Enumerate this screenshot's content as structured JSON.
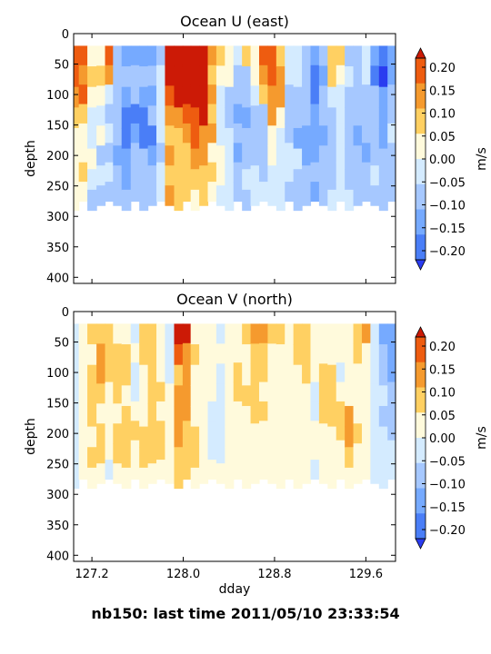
{
  "footer": "nb150: last time 2011/05/10 23:33:54",
  "chart_data": [
    {
      "type": "heatmap",
      "title": "Ocean U (east)",
      "ylabel": "depth",
      "xlabel": "",
      "xlim": [
        127.04,
        129.86
      ],
      "ylim": [
        410,
        0
      ],
      "y_inverted": true,
      "yticks": [
        0,
        50,
        100,
        150,
        200,
        250,
        300,
        350,
        400
      ],
      "xticks": [
        127.2,
        128.0,
        128.8,
        129.6
      ],
      "xtick_labels_shown": false,
      "data_depth_range": [
        20,
        290
      ],
      "colorbar": {
        "label": "m/s",
        "ticks": [
          "0.20",
          "0.15",
          "0.10",
          "0.05",
          "0.00",
          "−0.05",
          "−0.10",
          "−0.15",
          "−0.20"
        ],
        "range": [
          -0.2,
          0.2
        ],
        "extend": "both",
        "colors": [
          "#2a3cf0",
          "#4a7ef7",
          "#76aaff",
          "#a6c8ff",
          "#d4ebff",
          "#fffadc",
          "#ffd062",
          "#f59a2e",
          "#ee5c10",
          "#cc1a06"
        ]
      },
      "columns": [
        {
          "day": 127.05,
          "v": [
            0.16,
            0.16,
            0.11,
            0.06,
            0.03,
            0.02,
            0.04,
            0.01
          ]
        },
        {
          "day": 127.12,
          "v": [
            0.16,
            0.13,
            0.16,
            0.08,
            0.01,
            0.04,
            0.06,
            0.01
          ]
        },
        {
          "day": 127.2,
          "v": [
            0.01,
            0.06,
            0.04,
            -0.02,
            -0.05,
            0.01,
            -0.02,
            -0.06
          ]
        },
        {
          "day": 127.28,
          "v": [
            0.02,
            0.09,
            0.02,
            -0.05,
            0.0,
            -0.06,
            -0.05,
            -0.06
          ]
        },
        {
          "day": 127.35,
          "v": [
            0.16,
            0.1,
            -0.02,
            -0.07,
            -0.04,
            -0.07,
            -0.02,
            -0.06
          ]
        },
        {
          "day": 127.42,
          "v": [
            -0.07,
            -0.09,
            -0.08,
            -0.1,
            -0.1,
            -0.12,
            -0.1,
            -0.09
          ]
        },
        {
          "day": 127.5,
          "v": [
            -0.14,
            -0.1,
            -0.13,
            -0.16,
            -0.19,
            -0.11,
            -0.11,
            -0.09
          ]
        },
        {
          "day": 127.58,
          "v": [
            -0.13,
            -0.08,
            -0.1,
            -0.17,
            -0.14,
            -0.1,
            -0.1,
            -0.06
          ]
        },
        {
          "day": 127.65,
          "v": [
            -0.14,
            -0.07,
            -0.14,
            -0.17,
            -0.16,
            -0.1,
            -0.06,
            -0.07
          ]
        },
        {
          "day": 127.73,
          "v": [
            -0.15,
            -0.1,
            -0.13,
            -0.1,
            -0.17,
            -0.11,
            -0.07,
            -0.1
          ]
        },
        {
          "day": 127.8,
          "v": [
            -0.09,
            -0.03,
            -0.02,
            -0.03,
            -0.05,
            -0.1,
            -0.03,
            -0.04
          ]
        },
        {
          "day": 127.88,
          "v": [
            0.22,
            0.22,
            0.16,
            0.12,
            0.08,
            0.1,
            0.05,
            0.1
          ]
        },
        {
          "day": 127.96,
          "v": [
            0.21,
            0.22,
            0.22,
            0.12,
            0.07,
            0.06,
            0.07,
            0.08
          ]
        },
        {
          "day": 128.03,
          "v": [
            0.22,
            0.22,
            0.21,
            0.16,
            0.11,
            0.06,
            0.07,
            0.06
          ]
        },
        {
          "day": 128.1,
          "v": [
            0.22,
            0.22,
            0.21,
            0.17,
            0.18,
            0.13,
            0.06,
            0.04
          ]
        },
        {
          "day": 128.18,
          "v": [
            0.22,
            0.22,
            0.21,
            0.21,
            0.13,
            0.11,
            0.08,
            0.05
          ]
        },
        {
          "day": 128.25,
          "v": [
            0.11,
            0.09,
            0.11,
            0.06,
            0.11,
            0.03,
            0.05,
            0.04
          ]
        },
        {
          "day": 128.33,
          "v": [
            0.05,
            0.03,
            -0.01,
            -0.02,
            -0.02,
            0.03,
            0.02,
            -0.03
          ]
        },
        {
          "day": 128.4,
          "v": [
            0.03,
            0.02,
            -0.08,
            -0.09,
            -0.04,
            -0.03,
            -0.05,
            -0.05
          ]
        },
        {
          "day": 128.48,
          "v": [
            -0.02,
            -0.08,
            -0.1,
            -0.14,
            -0.1,
            -0.12,
            -0.06,
            -0.06
          ]
        },
        {
          "day": 128.55,
          "v": [
            0.07,
            -0.09,
            -0.09,
            -0.11,
            -0.08,
            -0.08,
            -0.05,
            -0.07
          ]
        },
        {
          "day": 128.63,
          "v": [
            0.01,
            0.03,
            -0.02,
            -0.08,
            -0.09,
            -0.07,
            -0.04,
            -0.05
          ]
        },
        {
          "day": 128.7,
          "v": [
            0.16,
            0.11,
            0.07,
            -0.06,
            -0.07,
            -0.1,
            -0.06,
            -0.04
          ]
        },
        {
          "day": 128.78,
          "v": [
            0.16,
            0.19,
            0.15,
            0.1,
            0.03,
            0.02,
            -0.02,
            -0.02
          ]
        },
        {
          "day": 128.85,
          "v": [
            0.07,
            0.14,
            0.11,
            0.04,
            -0.02,
            -0.05,
            -0.01,
            -0.01
          ]
        },
        {
          "day": 128.93,
          "v": [
            -0.03,
            -0.02,
            -0.1,
            -0.07,
            -0.07,
            -0.04,
            -0.05,
            -0.06
          ]
        },
        {
          "day": 129.0,
          "v": [
            -0.04,
            -0.04,
            -0.06,
            -0.09,
            -0.11,
            -0.05,
            -0.06,
            -0.06
          ]
        },
        {
          "day": 129.08,
          "v": [
            -0.07,
            -0.06,
            -0.06,
            -0.1,
            -0.12,
            -0.14,
            -0.09,
            -0.08
          ]
        },
        {
          "day": 129.15,
          "v": [
            -0.13,
            -0.19,
            -0.17,
            -0.13,
            -0.11,
            -0.14,
            -0.1,
            -0.11
          ]
        },
        {
          "day": 129.23,
          "v": [
            -0.08,
            -0.11,
            -0.1,
            -0.09,
            -0.12,
            -0.09,
            -0.09,
            -0.08
          ]
        },
        {
          "day": 129.3,
          "v": [
            0.06,
            0.07,
            -0.02,
            -0.06,
            -0.06,
            -0.06,
            -0.06,
            -0.03
          ]
        },
        {
          "day": 129.38,
          "v": [
            0.06,
            0.04,
            -0.02,
            -0.05,
            -0.02,
            -0.04,
            -0.05,
            -0.02
          ]
        },
        {
          "day": 129.45,
          "v": [
            -0.08,
            -0.05,
            -0.07,
            -0.07,
            -0.06,
            -0.07,
            -0.06,
            -0.05
          ]
        },
        {
          "day": 129.53,
          "v": [
            -0.07,
            -0.08,
            -0.1,
            -0.09,
            -0.13,
            -0.1,
            -0.08,
            -0.06
          ]
        },
        {
          "day": 129.6,
          "v": [
            -0.05,
            -0.04,
            -0.07,
            -0.07,
            -0.09,
            -0.12,
            -0.07,
            -0.07
          ]
        },
        {
          "day": 129.68,
          "v": [
            -0.12,
            -0.17,
            -0.09,
            -0.09,
            -0.08,
            -0.06,
            -0.04,
            -0.06
          ]
        },
        {
          "day": 129.75,
          "v": [
            -0.17,
            -0.21,
            -0.11,
            -0.14,
            -0.13,
            -0.1,
            -0.07,
            -0.08
          ]
        },
        {
          "day": 129.83,
          "v": [
            -0.11,
            -0.11,
            -0.1,
            -0.08,
            -0.05,
            -0.07,
            -0.08,
            -0.06
          ]
        }
      ]
    },
    {
      "type": "heatmap",
      "title": "Ocean V (north)",
      "ylabel": "depth",
      "xlabel": "dday",
      "xlim": [
        127.04,
        129.86
      ],
      "ylim": [
        410,
        0
      ],
      "y_inverted": true,
      "yticks": [
        0,
        50,
        100,
        150,
        200,
        250,
        300,
        350,
        400
      ],
      "xticks": [
        127.2,
        128.0,
        128.8,
        129.6
      ],
      "xtick_labels": [
        "127.2",
        "128.0",
        "128.8",
        "129.6"
      ],
      "data_depth_range": [
        20,
        290
      ],
      "colorbar": {
        "label": "m/s",
        "ticks": [
          "0.20",
          "0.15",
          "0.10",
          "0.05",
          "0.00",
          "−0.05",
          "−0.10",
          "−0.15",
          "−0.20"
        ],
        "range": [
          -0.2,
          0.2
        ],
        "extend": "both",
        "colors": [
          "#2a3cf0",
          "#4a7ef7",
          "#76aaff",
          "#a6c8ff",
          "#d4ebff",
          "#fffadc",
          "#ffd062",
          "#f59a2e",
          "#ee5c10",
          "#cc1a06"
        ]
      },
      "columns": [
        {
          "day": 127.05,
          "v": [
            -0.05,
            -0.03,
            -0.03,
            -0.02,
            -0.02,
            -0.02,
            -0.03,
            -0.02
          ]
        },
        {
          "day": 127.12,
          "v": [
            0.03,
            0.02,
            0.0,
            0.02,
            0.03,
            0.04,
            0.02,
            0.02
          ]
        },
        {
          "day": 127.2,
          "v": [
            0.06,
            0.04,
            0.05,
            0.06,
            0.07,
            0.04,
            0.06,
            0.03
          ]
        },
        {
          "day": 127.28,
          "v": [
            0.05,
            0.1,
            0.1,
            0.05,
            0.04,
            0.06,
            0.07,
            0.02
          ]
        },
        {
          "day": 127.35,
          "v": [
            0.08,
            0.07,
            0.05,
            0.04,
            0.0,
            0.03,
            0.03,
            -0.01
          ]
        },
        {
          "day": 127.42,
          "v": [
            0.02,
            0.06,
            0.09,
            0.06,
            0.03,
            0.07,
            0.06,
            0.02
          ]
        },
        {
          "day": 127.5,
          "v": [
            0.03,
            0.05,
            0.05,
            0.02,
            0.07,
            0.06,
            0.06,
            0.02
          ]
        },
        {
          "day": 127.58,
          "v": [
            -0.02,
            0.02,
            -0.03,
            -0.03,
            0.04,
            0.05,
            0.02,
            0.01
          ]
        },
        {
          "day": 127.65,
          "v": [
            0.05,
            0.06,
            0.02,
            0.01,
            0.02,
            0.07,
            0.09,
            0.04
          ]
        },
        {
          "day": 127.73,
          "v": [
            0.05,
            0.08,
            0.06,
            0.07,
            0.06,
            0.06,
            0.05,
            0.03
          ]
        },
        {
          "day": 127.8,
          "v": [
            0.02,
            0.0,
            0.02,
            0.06,
            0.04,
            0.07,
            0.07,
            0.03
          ]
        },
        {
          "day": 127.88,
          "v": [
            -0.03,
            -0.04,
            -0.02,
            0.0,
            0.0,
            0.03,
            0.04,
            0.02
          ]
        },
        {
          "day": 127.96,
          "v": [
            0.2,
            0.17,
            0.09,
            0.14,
            0.12,
            0.13,
            0.06,
            0.08
          ]
        },
        {
          "day": 128.03,
          "v": [
            0.2,
            0.14,
            0.1,
            0.1,
            0.12,
            0.09,
            0.09,
            0.06
          ]
        },
        {
          "day": 128.1,
          "v": [
            0.02,
            0.05,
            0.03,
            0.03,
            0.04,
            0.05,
            0.05,
            0.02
          ]
        },
        {
          "day": 128.18,
          "v": [
            0.0,
            0.0,
            0.03,
            0.01,
            0.01,
            0.02,
            0.02,
            0.01
          ]
        },
        {
          "day": 128.25,
          "v": [
            0.03,
            0.03,
            0.02,
            0.02,
            -0.01,
            -0.04,
            -0.03,
            0.01
          ]
        },
        {
          "day": 128.33,
          "v": [
            -0.02,
            0.02,
            -0.04,
            -0.04,
            -0.02,
            -0.03,
            -0.01,
            0.0
          ]
        },
        {
          "day": 128.4,
          "v": [
            0.01,
            0.03,
            0.04,
            0.02,
            0.02,
            0.03,
            0.02,
            0.01
          ]
        },
        {
          "day": 128.48,
          "v": [
            0.02,
            0.04,
            0.05,
            0.05,
            0.02,
            0.0,
            0.0,
            0.01
          ]
        },
        {
          "day": 128.55,
          "v": [
            0.07,
            0.04,
            0.04,
            0.06,
            0.03,
            0.04,
            0.02,
            0.02
          ]
        },
        {
          "day": 128.63,
          "v": [
            0.11,
            0.09,
            0.06,
            0.06,
            0.06,
            0.04,
            0.02,
            0.02
          ]
        },
        {
          "day": 128.7,
          "v": [
            0.1,
            0.06,
            0.05,
            0.03,
            0.05,
            0.02,
            0.02,
            0.02
          ]
        },
        {
          "day": 128.78,
          "v": [
            0.09,
            0.02,
            0.02,
            0.02,
            0.03,
            0.02,
            0.02,
            0.01
          ]
        },
        {
          "day": 128.85,
          "v": [
            0.05,
            0.03,
            0.02,
            0.02,
            0.02,
            0.01,
            0.0,
            0.01
          ]
        },
        {
          "day": 128.93,
          "v": [
            0.03,
            0.02,
            0.03,
            0.01,
            0.02,
            0.01,
            0.02,
            0.0
          ]
        },
        {
          "day": 129.0,
          "v": [
            0.06,
            0.07,
            0.03,
            0.03,
            0.03,
            0.01,
            0.0,
            0.0
          ]
        },
        {
          "day": 129.08,
          "v": [
            0.08,
            0.06,
            0.05,
            0.02,
            0.04,
            0.03,
            0.01,
            0.01
          ]
        },
        {
          "day": 129.15,
          "v": [
            0.02,
            0.02,
            0.01,
            -0.02,
            -0.03,
            0.0,
            0.0,
            -0.01
          ]
        },
        {
          "day": 129.23,
          "v": [
            0.03,
            0.02,
            0.05,
            0.05,
            0.06,
            0.04,
            0.03,
            0.0
          ]
        },
        {
          "day": 129.3,
          "v": [
            0.04,
            0.03,
            0.06,
            0.05,
            0.05,
            0.03,
            0.01,
            0.01
          ]
        },
        {
          "day": 129.38,
          "v": [
            0.02,
            0.02,
            -0.02,
            0.01,
            0.08,
            0.09,
            0.04,
            0.01
          ]
        },
        {
          "day": 129.45,
          "v": [
            0.03,
            0.04,
            0.02,
            0.03,
            0.1,
            0.1,
            0.05,
            0.02
          ]
        },
        {
          "day": 129.53,
          "v": [
            0.09,
            0.05,
            0.04,
            0.04,
            0.03,
            0.06,
            0.04,
            0.01
          ]
        },
        {
          "day": 129.6,
          "v": [
            0.1,
            0.03,
            0.02,
            0.02,
            0.02,
            0.03,
            0.02,
            0.0
          ]
        },
        {
          "day": 129.68,
          "v": [
            -0.02,
            -0.04,
            -0.03,
            -0.04,
            -0.03,
            -0.02,
            -0.03,
            -0.03
          ]
        },
        {
          "day": 129.75,
          "v": [
            -0.12,
            -0.08,
            -0.06,
            -0.05,
            -0.06,
            -0.03,
            -0.05,
            -0.04
          ]
        },
        {
          "day": 129.83,
          "v": [
            -0.15,
            -0.12,
            -0.12,
            -0.08,
            -0.07,
            -0.06,
            -0.05,
            -0.05
          ]
        }
      ]
    }
  ]
}
